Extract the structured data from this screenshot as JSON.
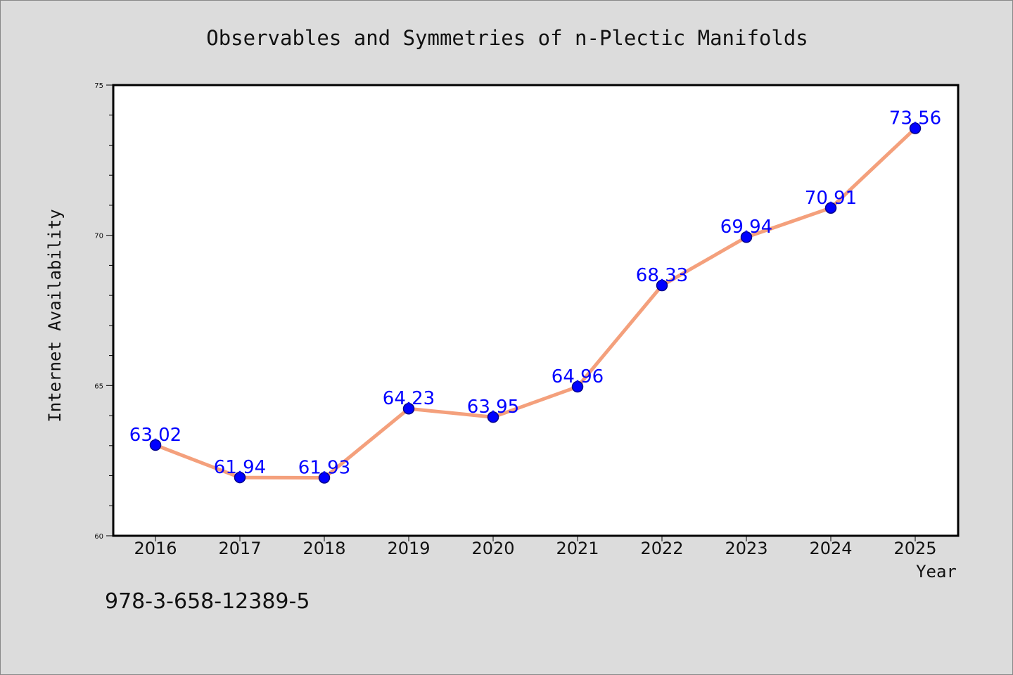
{
  "chart_data": {
    "type": "line",
    "title": "Observables and Symmetries of n-Plectic Manifolds",
    "xlabel": "Year",
    "ylabel": "Internet Availability",
    "categories": [
      "2016",
      "2017",
      "2018",
      "2019",
      "2020",
      "2021",
      "2022",
      "2023",
      "2024",
      "2025"
    ],
    "series": [
      {
        "values": [
          63.02,
          61.94,
          61.93,
          64.23,
          63.95,
          64.96,
          68.33,
          69.94,
          70.91,
          73.56
        ],
        "labels": [
          "63.02",
          "61.94",
          "61.93",
          "64.23",
          "63.95",
          "64.96",
          "68.33",
          "69.94",
          "70.91",
          "73.56"
        ]
      }
    ],
    "ylim": [
      60,
      75
    ],
    "yticks": [
      60,
      65,
      70,
      75
    ],
    "ytick_labels": [
      "60",
      "65",
      "70",
      "75"
    ],
    "y_minor_step": 1,
    "grid": false,
    "legend": "none",
    "colors": {
      "line": "#f4a07c",
      "marker": "#0000ff",
      "marker_edge": "#00008b",
      "data_label": "#0000ff",
      "plot_background": "#ffffff",
      "figure_background": "#dcdcdc"
    }
  },
  "annotation": {
    "isbn": "978-3-658-12389-5"
  }
}
